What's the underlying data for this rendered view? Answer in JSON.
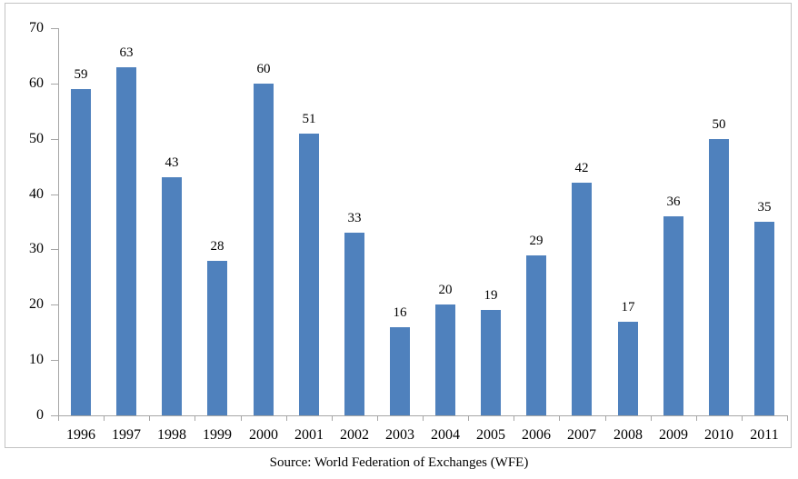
{
  "chart_data": {
    "type": "bar",
    "title": "",
    "categories": [
      "1996",
      "1997",
      "1998",
      "1999",
      "2000",
      "2001",
      "2002",
      "2003",
      "2004",
      "2005",
      "2006",
      "2007",
      "2008",
      "2009",
      "2010",
      "2011"
    ],
    "values": [
      59,
      63,
      43,
      28,
      60,
      51,
      33,
      16,
      20,
      19,
      29,
      42,
      17,
      36,
      50,
      35
    ],
    "xlabel": "",
    "ylabel": "",
    "ylim": [
      0,
      70
    ],
    "yticks": [
      0,
      10,
      20,
      30,
      40,
      50,
      60,
      70
    ],
    "grid": "off",
    "legend": "none",
    "data_labels": "above-bars",
    "bar_color": "#4f81bd",
    "axis_color": "#a6a6a6",
    "source": "Source: World Federation of Exchanges (WFE)"
  }
}
